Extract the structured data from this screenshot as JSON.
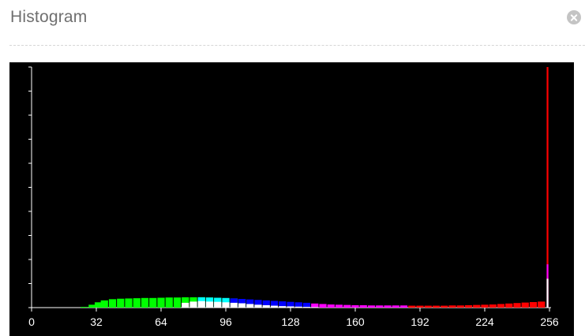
{
  "panel": {
    "title": "Histogram",
    "close_icon": "close-circle-icon"
  },
  "chart_data": {
    "type": "bar",
    "xlim": [
      0,
      256
    ],
    "x_ticks": [
      "0",
      "32",
      "64",
      "96",
      "128",
      "160",
      "192",
      "224",
      "256"
    ],
    "y_ticks_count": 11,
    "y_labels": "none",
    "grid": false,
    "legend": "none",
    "background": "#000000",
    "series": [
      {
        "color": "#00ff00",
        "points": [
          [
            26,
            0.003
          ],
          [
            30,
            0.012
          ],
          [
            33,
            0.022
          ],
          [
            36,
            0.03
          ],
          [
            40,
            0.035
          ],
          [
            44,
            0.037
          ],
          [
            48,
            0.038
          ],
          [
            52,
            0.039
          ],
          [
            56,
            0.04
          ],
          [
            60,
            0.04
          ],
          [
            64,
            0.041
          ],
          [
            68,
            0.042
          ],
          [
            72,
            0.042
          ],
          [
            76,
            0.043
          ],
          [
            80,
            0.043
          ],
          [
            84,
            0.043
          ],
          [
            88,
            0.042
          ],
          [
            92,
            0.041
          ]
        ]
      },
      {
        "color": "#00ffff",
        "points": [
          [
            84,
            0.043
          ],
          [
            88,
            0.042
          ],
          [
            92,
            0.041
          ],
          [
            96,
            0.04
          ],
          [
            100,
            0.038
          ],
          [
            104,
            0.036
          ]
        ]
      },
      {
        "color": "#0000ff",
        "points": [
          [
            100,
            0.038
          ],
          [
            104,
            0.036
          ],
          [
            108,
            0.034
          ],
          [
            112,
            0.032
          ],
          [
            116,
            0.03
          ],
          [
            120,
            0.028
          ],
          [
            124,
            0.026
          ],
          [
            128,
            0.024
          ],
          [
            132,
            0.022
          ],
          [
            136,
            0.02
          ]
        ]
      },
      {
        "color": "#ff00ff",
        "points": [
          [
            140,
            0.017
          ],
          [
            144,
            0.015
          ],
          [
            148,
            0.013
          ],
          [
            152,
            0.012
          ],
          [
            156,
            0.011
          ],
          [
            160,
            0.01
          ],
          [
            164,
            0.01
          ],
          [
            168,
            0.009
          ],
          [
            172,
            0.009
          ],
          [
            176,
            0.009
          ],
          [
            180,
            0.009
          ],
          [
            184,
            0.009
          ]
        ]
      },
      {
        "color": "#ff0000",
        "points": [
          [
            188,
            0.008
          ],
          [
            192,
            0.008
          ],
          [
            196,
            0.008
          ],
          [
            200,
            0.008
          ],
          [
            204,
            0.008
          ],
          [
            208,
            0.009
          ],
          [
            212,
            0.009
          ],
          [
            216,
            0.01
          ],
          [
            220,
            0.011
          ],
          [
            224,
            0.012
          ],
          [
            228,
            0.013
          ],
          [
            232,
            0.015
          ],
          [
            236,
            0.017
          ],
          [
            240,
            0.019
          ],
          [
            244,
            0.021
          ],
          [
            248,
            0.023
          ],
          [
            252,
            0.025
          ]
        ]
      },
      {
        "color": "#ffffff",
        "points": [
          [
            76,
            0.02
          ],
          [
            80,
            0.025
          ],
          [
            84,
            0.027
          ],
          [
            88,
            0.025
          ],
          [
            92,
            0.024
          ],
          [
            96,
            0.022
          ],
          [
            100,
            0.02
          ],
          [
            104,
            0.018
          ],
          [
            108,
            0.015
          ],
          [
            112,
            0.012
          ],
          [
            116,
            0.01
          ],
          [
            120,
            0.008
          ],
          [
            124,
            0.006
          ],
          [
            128,
            0.005
          ],
          [
            132,
            0.004
          ],
          [
            136,
            0.003
          ],
          [
            140,
            0.002
          ]
        ]
      }
    ],
    "spike": {
      "x": 255,
      "segments": [
        {
          "color": "#ffffff",
          "value": 0.12
        },
        {
          "color": "#ff00ff",
          "value": 0.18
        },
        {
          "color": "#ff0000",
          "value": 1.0
        }
      ]
    }
  }
}
